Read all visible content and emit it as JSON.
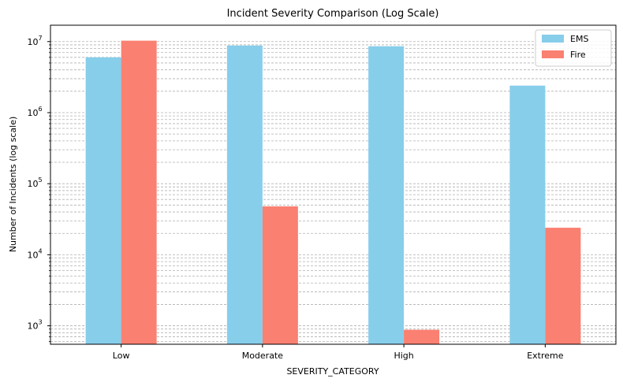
{
  "chart_data": {
    "type": "bar",
    "title": "Incident Severity Comparison (Log Scale)",
    "xlabel": "SEVERITY_CATEGORY",
    "ylabel": "Number of Incidents (log scale)",
    "categories": [
      "Low",
      "Moderate",
      "High",
      "Extreme"
    ],
    "series": [
      {
        "name": "EMS",
        "color": "#87ceeb",
        "values": [
          6000000,
          8800000,
          8600000,
          2400000
        ]
      },
      {
        "name": "Fire",
        "color": "#fa8072",
        "values": [
          10300000,
          48000,
          880,
          24000
        ]
      }
    ],
    "yscale": "log",
    "ylim": [
      550,
      17000000
    ],
    "yticks": [
      {
        "value": 1000,
        "base": "10",
        "exp": "3"
      },
      {
        "value": 10000,
        "base": "10",
        "exp": "4"
      },
      {
        "value": 100000,
        "base": "10",
        "exp": "5"
      },
      {
        "value": 1000000,
        "base": "10",
        "exp": "6"
      },
      {
        "value": 10000000,
        "base": "10",
        "exp": "7"
      }
    ],
    "grid": true,
    "legend_position": "top-right"
  }
}
